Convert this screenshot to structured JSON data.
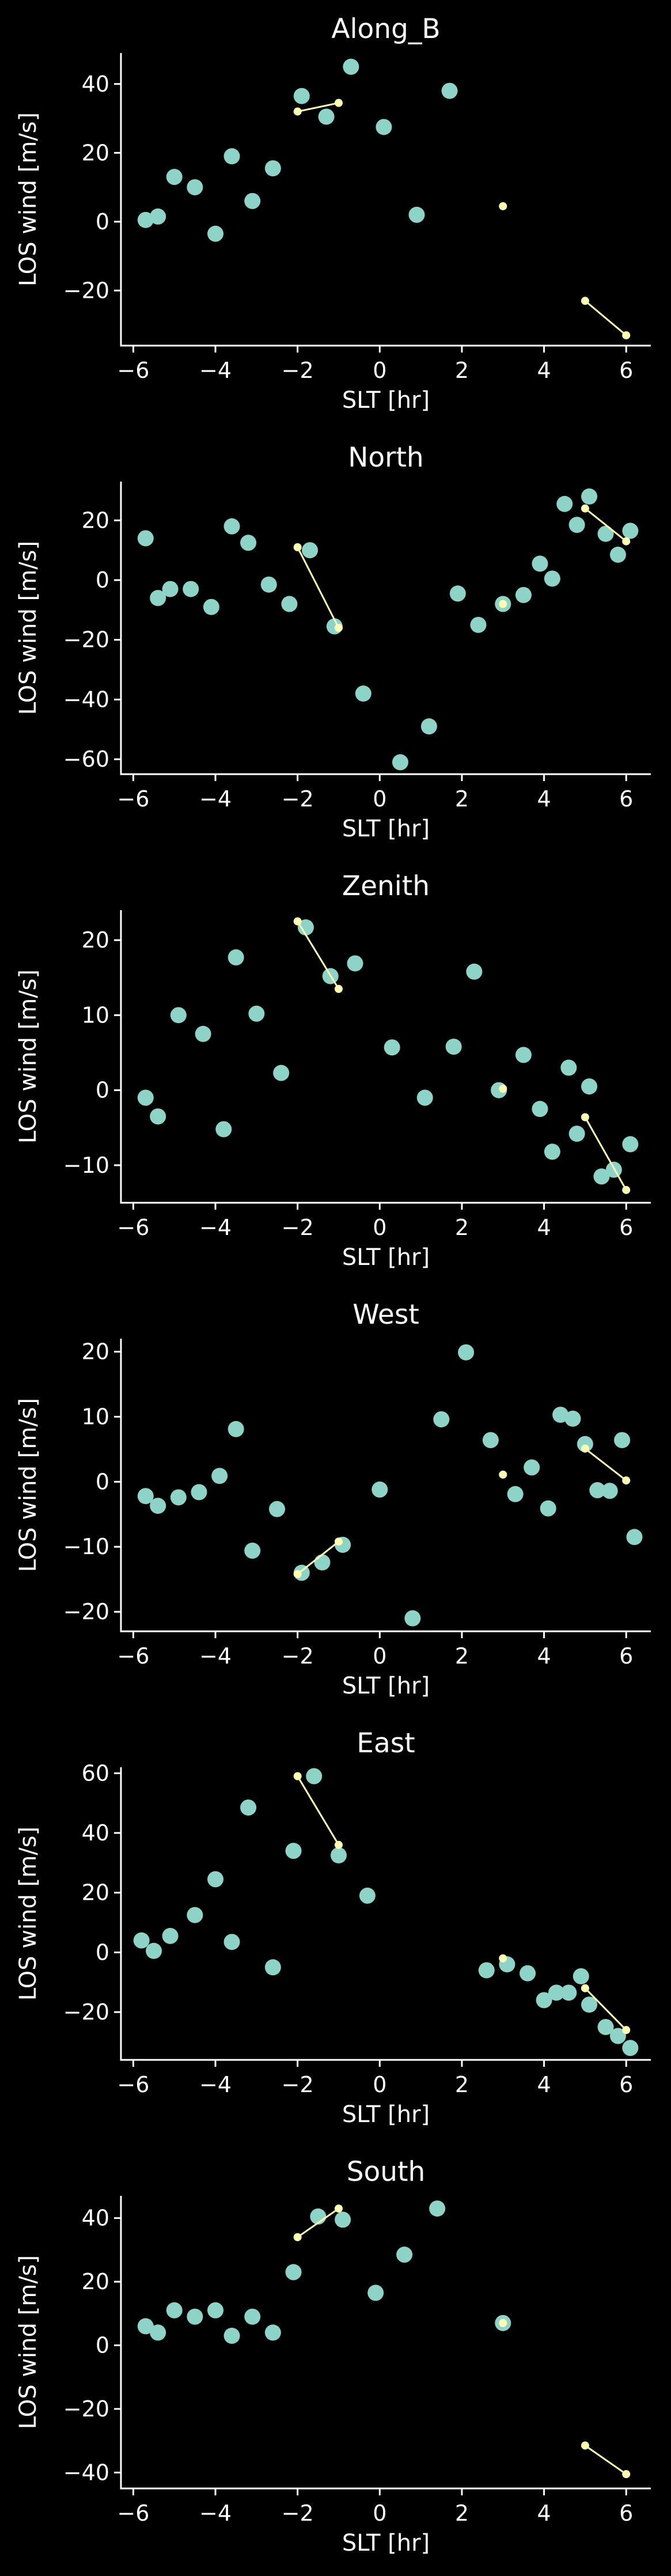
{
  "chart_data": [
    {
      "type": "scatter",
      "title": "Along_B",
      "xlabel": "SLT [hr]",
      "ylabel": "LOS wind [m/s]",
      "xlim": [
        -6.3,
        6.6
      ],
      "ylim": [
        -36,
        49
      ],
      "xticks": [
        -6,
        -4,
        -2,
        0,
        2,
        4,
        6
      ],
      "yticks": [
        -20,
        0,
        20,
        40
      ],
      "grid": false,
      "series": [
        {
          "role": "data-points",
          "color": "#8dd3c7",
          "points": [
            [
              -5.7,
              0.5
            ],
            [
              -5.4,
              1.5
            ],
            [
              -5.0,
              13
            ],
            [
              -4.5,
              10
            ],
            [
              -4.0,
              -3.5
            ],
            [
              -3.6,
              19
            ],
            [
              -3.1,
              6
            ],
            [
              -2.6,
              15.5
            ],
            [
              -1.9,
              36.5
            ],
            [
              -1.3,
              30.5
            ],
            [
              -0.7,
              45
            ],
            [
              0.1,
              27.5
            ],
            [
              0.9,
              2
            ],
            [
              1.7,
              38
            ]
          ]
        },
        {
          "role": "model-segment",
          "color": "#ffffb3",
          "points": [
            [
              -2.0,
              32
            ],
            [
              -1.0,
              34.5
            ]
          ]
        },
        {
          "role": "model-segment",
          "color": "#ffffb3",
          "points": [
            [
              3.0,
              4.5
            ]
          ]
        },
        {
          "role": "model-segment",
          "color": "#ffffb3",
          "points": [
            [
              5.0,
              -23
            ],
            [
              6.0,
              -33
            ]
          ]
        }
      ]
    },
    {
      "type": "scatter",
      "title": "North",
      "xlabel": "SLT [hr]",
      "ylabel": "LOS wind [m/s]",
      "xlim": [
        -6.3,
        6.6
      ],
      "ylim": [
        -65,
        33
      ],
      "xticks": [
        -6,
        -4,
        -2,
        0,
        2,
        4,
        6
      ],
      "yticks": [
        -60,
        -40,
        -20,
        0,
        20
      ],
      "grid": false,
      "series": [
        {
          "role": "data-points",
          "color": "#8dd3c7",
          "points": [
            [
              -5.7,
              14
            ],
            [
              -5.4,
              -6
            ],
            [
              -5.1,
              -3
            ],
            [
              -4.6,
              -3
            ],
            [
              -4.1,
              -9
            ],
            [
              -3.6,
              18
            ],
            [
              -3.2,
              12.5
            ],
            [
              -2.7,
              -1.5
            ],
            [
              -2.2,
              -8
            ],
            [
              -1.7,
              10
            ],
            [
              -1.1,
              -15.5
            ],
            [
              -0.4,
              -38
            ],
            [
              0.5,
              -61
            ],
            [
              1.2,
              -49
            ],
            [
              1.9,
              -4.5
            ],
            [
              2.4,
              -15
            ],
            [
              3.0,
              -8
            ],
            [
              3.5,
              -5
            ],
            [
              3.9,
              5.5
            ],
            [
              4.2,
              0.5
            ],
            [
              4.5,
              25.5
            ],
            [
              4.8,
              18.5
            ],
            [
              5.1,
              28
            ],
            [
              5.5,
              15.5
            ],
            [
              5.8,
              8.5
            ],
            [
              6.1,
              16.5
            ]
          ]
        },
        {
          "role": "model-segment",
          "color": "#ffffb3",
          "points": [
            [
              -2.0,
              11
            ],
            [
              -1.0,
              -16
            ]
          ]
        },
        {
          "role": "model-segment",
          "color": "#ffffb3",
          "points": [
            [
              3.0,
              -8
            ]
          ]
        },
        {
          "role": "model-segment",
          "color": "#ffffb3",
          "points": [
            [
              5.0,
              24
            ],
            [
              6.0,
              13
            ]
          ]
        }
      ]
    },
    {
      "type": "scatter",
      "title": "Zenith",
      "xlabel": "SLT [hr]",
      "ylabel": "LOS wind [m/s]",
      "xlim": [
        -6.3,
        6.6
      ],
      "ylim": [
        -15,
        24
      ],
      "xticks": [
        -6,
        -4,
        -2,
        0,
        2,
        4,
        6
      ],
      "yticks": [
        -10,
        0,
        10,
        20
      ],
      "grid": false,
      "series": [
        {
          "role": "data-points",
          "color": "#8dd3c7",
          "points": [
            [
              -5.7,
              -1
            ],
            [
              -5.4,
              -3.5
            ],
            [
              -4.9,
              10
            ],
            [
              -4.3,
              7.5
            ],
            [
              -3.8,
              -5.2
            ],
            [
              -3.5,
              17.7
            ],
            [
              -3.0,
              10.2
            ],
            [
              -2.4,
              2.3
            ],
            [
              -1.8,
              21.7
            ],
            [
              -1.2,
              15.2
            ],
            [
              -0.6,
              16.9
            ],
            [
              0.3,
              5.7
            ],
            [
              1.1,
              -1
            ],
            [
              1.8,
              5.8
            ],
            [
              2.3,
              15.8
            ],
            [
              2.9,
              0
            ],
            [
              3.5,
              4.7
            ],
            [
              3.9,
              -2.5
            ],
            [
              4.2,
              -8.2
            ],
            [
              4.6,
              3
            ],
            [
              4.8,
              -5.8
            ],
            [
              5.1,
              0.5
            ],
            [
              5.4,
              -11.5
            ],
            [
              5.7,
              -10.6
            ],
            [
              6.1,
              -7.2
            ]
          ]
        },
        {
          "role": "model-segment",
          "color": "#ffffb3",
          "points": [
            [
              -2.0,
              22.5
            ],
            [
              -1.0,
              13.5
            ]
          ]
        },
        {
          "role": "model-segment",
          "color": "#ffffb3",
          "points": [
            [
              3.0,
              0.2
            ]
          ]
        },
        {
          "role": "model-segment",
          "color": "#ffffb3",
          "points": [
            [
              5.0,
              -3.6
            ],
            [
              6.0,
              -13.3
            ]
          ]
        }
      ]
    },
    {
      "type": "scatter",
      "title": "West",
      "xlabel": "SLT [hr]",
      "ylabel": "LOS wind [m/s]",
      "xlim": [
        -6.3,
        6.6
      ],
      "ylim": [
        -23,
        22
      ],
      "xticks": [
        -6,
        -4,
        -2,
        0,
        2,
        4,
        6
      ],
      "yticks": [
        -20,
        -10,
        0,
        10,
        20
      ],
      "grid": false,
      "series": [
        {
          "role": "data-points",
          "color": "#8dd3c7",
          "points": [
            [
              -5.7,
              -2.2
            ],
            [
              -5.4,
              -3.7
            ],
            [
              -4.9,
              -2.4
            ],
            [
              -4.4,
              -1.6
            ],
            [
              -3.9,
              0.9
            ],
            [
              -3.5,
              8.1
            ],
            [
              -3.1,
              -10.6
            ],
            [
              -2.5,
              -4.2
            ],
            [
              -1.9,
              -14
            ],
            [
              -1.4,
              -12.4
            ],
            [
              -0.9,
              -9.7
            ],
            [
              0.0,
              -1.2
            ],
            [
              0.8,
              -21
            ],
            [
              1.5,
              9.6
            ],
            [
              2.1,
              19.9
            ],
            [
              2.7,
              6.4
            ],
            [
              3.3,
              -1.9
            ],
            [
              3.7,
              2.2
            ],
            [
              4.1,
              -4.1
            ],
            [
              4.4,
              10.3
            ],
            [
              4.7,
              9.7
            ],
            [
              5.0,
              5.8
            ],
            [
              5.3,
              -1.3
            ],
            [
              5.6,
              -1.4
            ],
            [
              5.9,
              6.4
            ],
            [
              6.2,
              -8.5
            ]
          ]
        },
        {
          "role": "model-segment",
          "color": "#ffffb3",
          "points": [
            [
              -2.0,
              -14.2
            ],
            [
              -1.0,
              -9.2
            ]
          ]
        },
        {
          "role": "model-segment",
          "color": "#ffffb3",
          "points": [
            [
              3.0,
              1.1
            ]
          ]
        },
        {
          "role": "model-segment",
          "color": "#ffffb3",
          "points": [
            [
              5.0,
              5.1
            ],
            [
              6.0,
              0.2
            ]
          ]
        }
      ]
    },
    {
      "type": "scatter",
      "title": "East",
      "xlabel": "SLT [hr]",
      "ylabel": "LOS wind [m/s]",
      "xlim": [
        -6.3,
        6.6
      ],
      "ylim": [
        -36,
        62
      ],
      "xticks": [
        -6,
        -4,
        -2,
        0,
        2,
        4,
        6
      ],
      "yticks": [
        -20,
        0,
        20,
        40,
        60
      ],
      "grid": false,
      "series": [
        {
          "role": "data-points",
          "color": "#8dd3c7",
          "points": [
            [
              -5.8,
              4
            ],
            [
              -5.5,
              0.5
            ],
            [
              -5.1,
              5.5
            ],
            [
              -4.5,
              12.5
            ],
            [
              -4.0,
              24.5
            ],
            [
              -3.6,
              3.5
            ],
            [
              -3.2,
              48.5
            ],
            [
              -2.6,
              -5
            ],
            [
              -2.1,
              34
            ],
            [
              -1.6,
              59
            ],
            [
              -1.0,
              32.5
            ],
            [
              -0.3,
              19
            ],
            [
              2.6,
              -6
            ],
            [
              3.1,
              -4
            ],
            [
              3.6,
              -7
            ],
            [
              4.0,
              -16
            ],
            [
              4.3,
              -13.5
            ],
            [
              4.6,
              -13.5
            ],
            [
              4.9,
              -8
            ],
            [
              5.1,
              -17.5
            ],
            [
              5.5,
              -25
            ],
            [
              5.8,
              -28
            ],
            [
              6.1,
              -32
            ]
          ]
        },
        {
          "role": "model-segment",
          "color": "#ffffb3",
          "points": [
            [
              -2.0,
              59
            ],
            [
              -1.0,
              36
            ]
          ]
        },
        {
          "role": "model-segment",
          "color": "#ffffb3",
          "points": [
            [
              3.0,
              -2
            ]
          ]
        },
        {
          "role": "model-segment",
          "color": "#ffffb3",
          "points": [
            [
              5.0,
              -12
            ],
            [
              6.0,
              -26
            ]
          ]
        }
      ]
    },
    {
      "type": "scatter",
      "title": "South",
      "xlabel": "SLT [hr]",
      "ylabel": "LOS wind [m/s]",
      "xlim": [
        -6.3,
        6.6
      ],
      "ylim": [
        -45,
        47
      ],
      "xticks": [
        -6,
        -4,
        -2,
        0,
        2,
        4,
        6
      ],
      "yticks": [
        -40,
        -20,
        0,
        20,
        40
      ],
      "grid": false,
      "series": [
        {
          "role": "data-points",
          "color": "#8dd3c7",
          "points": [
            [
              -5.7,
              6
            ],
            [
              -5.4,
              4
            ],
            [
              -5.0,
              11
            ],
            [
              -4.5,
              9
            ],
            [
              -4.0,
              11
            ],
            [
              -3.6,
              3
            ],
            [
              -3.1,
              9
            ],
            [
              -2.6,
              4
            ],
            [
              -2.1,
              23
            ],
            [
              -1.5,
              40.5
            ],
            [
              -0.9,
              39.5
            ],
            [
              -0.1,
              16.5
            ],
            [
              0.6,
              28.5
            ],
            [
              1.4,
              43
            ],
            [
              3.0,
              7
            ]
          ]
        },
        {
          "role": "model-segment",
          "color": "#ffffb3",
          "points": [
            [
              -2.0,
              34
            ],
            [
              -1.0,
              43
            ]
          ]
        },
        {
          "role": "model-segment",
          "color": "#ffffb3",
          "points": [
            [
              3.0,
              7
            ]
          ]
        },
        {
          "role": "model-segment",
          "color": "#ffffb3",
          "points": [
            [
              5.0,
              -31.5
            ],
            [
              6.0,
              -40.5
            ]
          ]
        }
      ]
    }
  ]
}
